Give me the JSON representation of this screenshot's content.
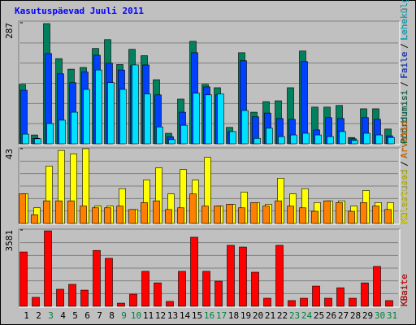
{
  "chart_data": {
    "type": "bar",
    "title": "Kasutuspäevad Juuli 2011",
    "categories": [
      "1",
      "2",
      "3",
      "4",
      "5",
      "6",
      "7",
      "8",
      "9",
      "10",
      "11",
      "12",
      "13",
      "14",
      "15",
      "16",
      "17",
      "18",
      "19",
      "20",
      "21",
      "22",
      "23",
      "24",
      "25",
      "26",
      "27",
      "28",
      "29",
      "30",
      "31"
    ],
    "category_colors": [
      "#000000",
      "#000000",
      "#008040",
      "#000000",
      "#000000",
      "#000000",
      "#000000",
      "#000000",
      "#008040",
      "#008040",
      "#000000",
      "#000000",
      "#000000",
      "#000000",
      "#000000",
      "#008040",
      "#008040",
      "#000000",
      "#000000",
      "#000000",
      "#000000",
      "#000000",
      "#008040",
      "#008040",
      "#000000",
      "#000000",
      "#000000",
      "#000000",
      "#000000",
      "#008040",
      "#008040"
    ],
    "panels": [
      {
        "ylim": [
          0,
          287
        ],
        "yticks": [
          287
        ],
        "series": [
          {
            "name": "Pöördumisi",
            "color": "#00805c",
            "values": [
              141,
              21,
              285,
              202,
              177,
              181,
              226,
              247,
              188,
              224,
              209,
              152,
              25,
              106,
              243,
              141,
              133,
              39,
              216,
              75,
              100,
              102,
              133,
              220,
              87,
              87,
              91,
              15,
              83,
              83,
              35
            ]
          },
          {
            "name": "Faile",
            "color": "#0040ff",
            "values": [
              127,
              13,
              214,
              166,
              145,
              170,
              210,
              191,
              175,
              185,
              187,
              116,
              17,
              75,
              216,
              135,
              116,
              29,
              197,
              64,
              73,
              60,
              58,
              195,
              33,
              62,
              60,
              12,
              62,
              58,
              19
            ]
          },
          {
            "name": "Lehekülgi",
            "color": "#00e0ff",
            "values": [
              23,
              12,
              48,
              56,
              75,
              129,
              175,
              145,
              129,
              187,
              118,
              40,
              10,
              44,
              120,
              116,
              118,
              29,
              79,
              13,
              37,
              17,
              21,
              25,
              21,
              17,
              29,
              8,
              25,
              21,
              15
            ]
          }
        ]
      },
      {
        "ylim": [
          0,
          43
        ],
        "yticks": [
          43
        ],
        "series": [
          {
            "name": "Külastused",
            "color": "#ffff00",
            "values": [
              17,
              9,
              33,
              42,
              40,
              43,
              10,
              10,
              20,
              8,
              25,
              32,
              17,
              31,
              25,
              38,
              10,
              11,
              18,
              12,
              11,
              26,
              17,
              20,
              12,
              13,
              13,
              10,
              19,
              12,
              12
            ]
          },
          {
            "name": "Arvutid",
            "color": "#ff8000",
            "values": [
              17,
              5,
              13,
              13,
              13,
              10,
              9,
              9,
              10,
              8,
              12,
              13,
              8,
              9,
              17,
              10,
              10,
              11,
              9,
              12,
              10,
              13,
              10,
              9,
              7,
              13,
              12,
              7,
              12,
              10,
              8
            ]
          }
        ]
      },
      {
        "ylim": [
          0,
          3581
        ],
        "yticks": [
          3581
        ],
        "series": [
          {
            "name": "KBaite",
            "color": "#ff0000",
            "values": [
              2550,
              420,
              3540,
              800,
              1030,
              760,
              2620,
              2250,
              150,
              570,
              1640,
              1100,
              230,
              1640,
              3240,
              1640,
              1180,
              2860,
              2780,
              1600,
              380,
              2860,
              270,
              380,
              950,
              380,
              870,
              380,
              1100,
              1870,
              270
            ]
          }
        ]
      }
    ]
  }
}
